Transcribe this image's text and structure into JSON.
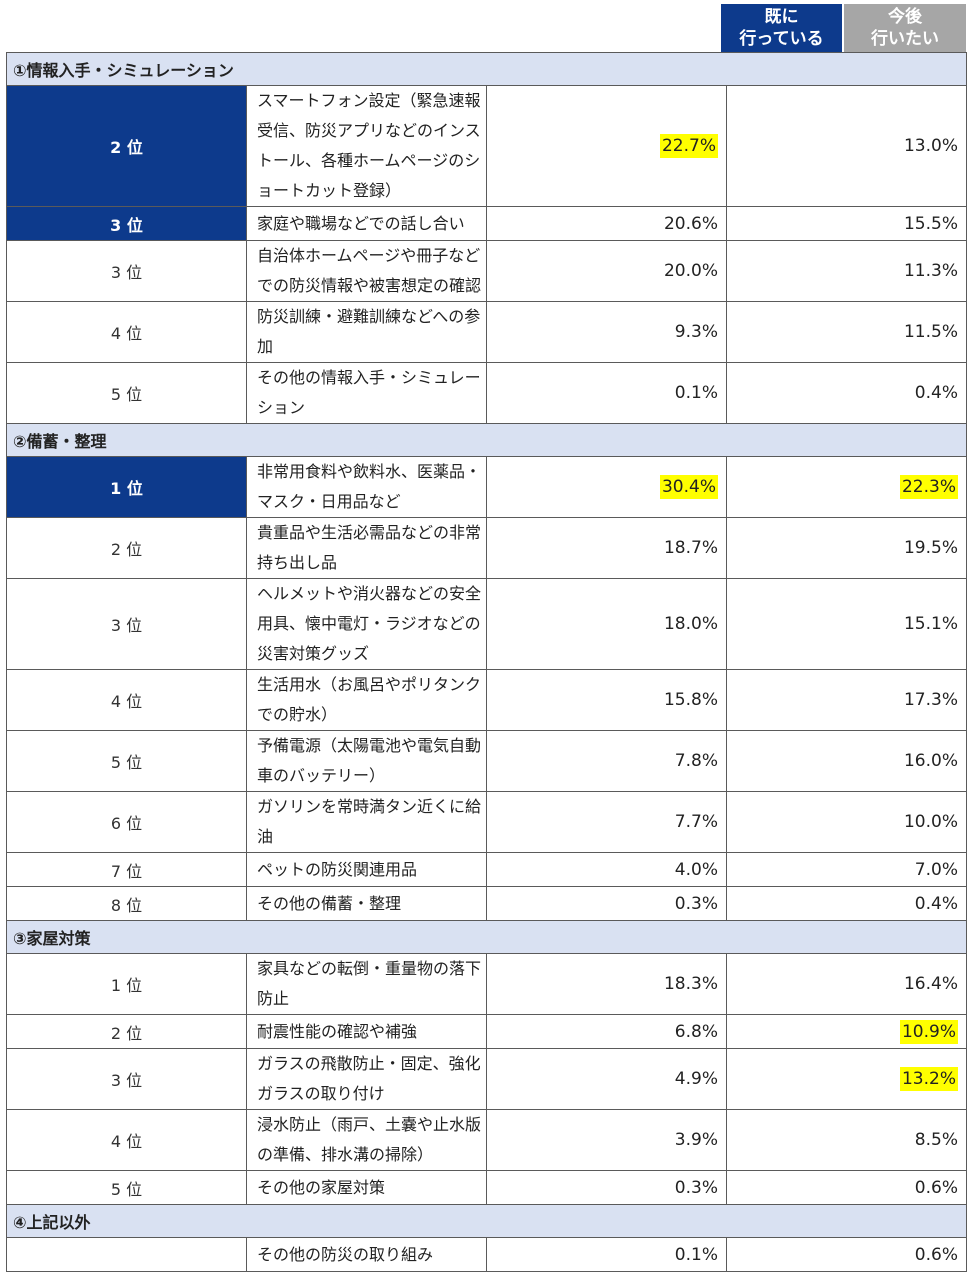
{
  "headers": {
    "done_line1": "既に",
    "done_line2": "行っている",
    "future_line1": "今後",
    "future_line2": "行いたい"
  },
  "sections": [
    {
      "title": "①情報入手・シミュレーション",
      "rows": [
        {
          "rank": "2 位",
          "top": true,
          "item": "スマートフォン設定（緊急速報受信、防災アプリなどのインストール、各種ホームページのショートカット登録）",
          "done": "22.7%",
          "future": "13.0%",
          "hl_done": true,
          "hl_future": false,
          "tall": true
        },
        {
          "rank": "3 位",
          "top": true,
          "item": "家庭や職場などでの話し合い",
          "done": "20.6%",
          "future": "15.5%",
          "hl_done": false,
          "hl_future": false
        },
        {
          "rank": "3 位",
          "top": false,
          "item": "自治体ホームページや冊子などでの防災情報や被害想定の確認",
          "done": "20.0%",
          "future": "11.3%",
          "hl_done": false,
          "hl_future": false
        },
        {
          "rank": "4 位",
          "top": false,
          "item": "防災訓練・避難訓練などへの参加",
          "done": "9.3%",
          "future": "11.5%",
          "hl_done": false,
          "hl_future": false
        },
        {
          "rank": "5 位",
          "top": false,
          "item": "その他の情報入手・シミュレーション",
          "done": "0.1%",
          "future": "0.4%",
          "hl_done": false,
          "hl_future": false
        }
      ]
    },
    {
      "title": "②備蓄・整理",
      "rows": [
        {
          "rank": "1 位",
          "top": true,
          "item": "非常用食料や飲料水、医薬品・マスク・日用品など",
          "done": "30.4%",
          "future": "22.3%",
          "hl_done": true,
          "hl_future": true
        },
        {
          "rank": "2 位",
          "top": false,
          "item": "貴重品や生活必需品などの非常持ち出し品",
          "done": "18.7%",
          "future": "19.5%",
          "hl_done": false,
          "hl_future": false
        },
        {
          "rank": "3 位",
          "top": false,
          "item": "ヘルメットや消火器などの安全用具、懐中電灯・ラジオなどの災害対策グッズ",
          "done": "18.0%",
          "future": "15.1%",
          "hl_done": false,
          "hl_future": false
        },
        {
          "rank": "4 位",
          "top": false,
          "item": "生活用水（お風呂やポリタンクでの貯水）",
          "done": "15.8%",
          "future": "17.3%",
          "hl_done": false,
          "hl_future": false
        },
        {
          "rank": "5 位",
          "top": false,
          "item": "予備電源（太陽電池や電気自動車のバッテリー）",
          "done": "7.8%",
          "future": "16.0%",
          "hl_done": false,
          "hl_future": false
        },
        {
          "rank": "6 位",
          "top": false,
          "item": "ガソリンを常時満タン近くに給油",
          "done": "7.7%",
          "future": "10.0%",
          "hl_done": false,
          "hl_future": false
        },
        {
          "rank": "7 位",
          "top": false,
          "item": "ペットの防災関連用品",
          "done": "4.0%",
          "future": "7.0%",
          "hl_done": false,
          "hl_future": false
        },
        {
          "rank": "8 位",
          "top": false,
          "item": "その他の備蓄・整理",
          "done": "0.3%",
          "future": "0.4%",
          "hl_done": false,
          "hl_future": false
        }
      ]
    },
    {
      "title": "③家屋対策",
      "rows": [
        {
          "rank": "1 位",
          "top": false,
          "item": "家具などの転倒・重量物の落下防止",
          "done": "18.3%",
          "future": "16.4%",
          "hl_done": false,
          "hl_future": false
        },
        {
          "rank": "2 位",
          "top": false,
          "item": "耐震性能の確認や補強",
          "done": "6.8%",
          "future": "10.9%",
          "hl_done": false,
          "hl_future": true
        },
        {
          "rank": "3 位",
          "top": false,
          "item": "ガラスの飛散防止・固定、強化ガラスの取り付け",
          "done": "4.9%",
          "future": "13.2%",
          "hl_done": false,
          "hl_future": true
        },
        {
          "rank": "4 位",
          "top": false,
          "item": "浸水防止（雨戸、土嚢や止水版の準備、排水溝の掃除）",
          "done": "3.9%",
          "future": "8.5%",
          "hl_done": false,
          "hl_future": false
        },
        {
          "rank": "5 位",
          "top": false,
          "item": "その他の家屋対策",
          "done": "0.3%",
          "future": "0.6%",
          "hl_done": false,
          "hl_future": false
        }
      ]
    },
    {
      "title": "④上記以外",
      "rows": [
        {
          "rank": "",
          "top": false,
          "item": "その他の防災の取り組み",
          "done": "0.1%",
          "future": "0.6%",
          "hl_done": false,
          "hl_future": false
        }
      ]
    }
  ]
}
